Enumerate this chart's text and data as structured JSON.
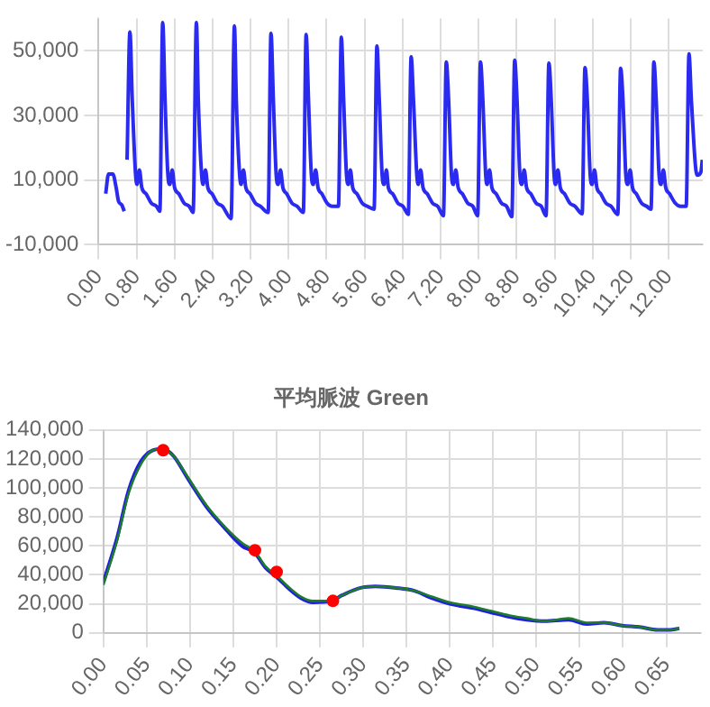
{
  "chart_data": [
    {
      "type": "line",
      "xlim": [
        0,
        12.72
      ],
      "ylim": [
        -10000,
        60000
      ],
      "xticks": [
        {
          "value": 0,
          "label": "0.00"
        },
        {
          "value": 0.8,
          "label": "0.80"
        },
        {
          "value": 1.6,
          "label": "1.60"
        },
        {
          "value": 2.4,
          "label": "2.40"
        },
        {
          "value": 3.2,
          "label": "3.20"
        },
        {
          "value": 4,
          "label": "4.00"
        },
        {
          "value": 4.8,
          "label": "4.80"
        },
        {
          "value": 5.6,
          "label": "5.60"
        },
        {
          "value": 6.4,
          "label": "6.40"
        },
        {
          "value": 7.2,
          "label": "7.20"
        },
        {
          "value": 8,
          "label": "8.00"
        },
        {
          "value": 8.8,
          "label": "8.80"
        },
        {
          "value": 9.6,
          "label": "9.60"
        },
        {
          "value": 10.4,
          "label": "10.40"
        },
        {
          "value": 11.2,
          "label": "11.20"
        },
        {
          "value": 12,
          "label": "12.00"
        }
      ],
      "yticks": [
        {
          "value": -10000,
          "label": "-10,000"
        },
        {
          "value": 10000,
          "label": "10,000"
        },
        {
          "value": 30000,
          "label": "30,000"
        },
        {
          "value": 50000,
          "label": "50,000"
        }
      ],
      "grid": true,
      "legend": false,
      "marker": "none",
      "line_style": "solid",
      "series": [
        {
          "color": "#2a2af0",
          "x": [
            0.15,
            0.21,
            0.3,
            0.37,
            0.42,
            0.49,
            0.54,
            0.57,
            0.6,
            0.66,
            0.71,
            0.78,
            0.81,
            0.86,
            0.91,
            1.0,
            1.11,
            1.22,
            1.29,
            1.35,
            1.4,
            1.46,
            1.5,
            1.55,
            1.6,
            1.69,
            1.8,
            1.91,
            1.99,
            2.06,
            2.1,
            2.17,
            2.2,
            2.25,
            2.3,
            2.39,
            2.5,
            2.61,
            2.79,
            2.86,
            2.9,
            2.97,
            3.0,
            3.05,
            3.1,
            3.19,
            3.3,
            3.41,
            3.57,
            3.63,
            3.68,
            3.74,
            3.78,
            3.83,
            3.88,
            3.96,
            4.07,
            4.18,
            4.31,
            4.37,
            4.42,
            4.48,
            4.52,
            4.57,
            4.62,
            4.7,
            4.81,
            4.92,
            5.05,
            5.11,
            5.16,
            5.22,
            5.26,
            5.3,
            5.35,
            5.44,
            5.55,
            5.66,
            5.8,
            5.86,
            5.91,
            5.97,
            6.01,
            6.06,
            6.1,
            6.19,
            6.3,
            6.41,
            6.52,
            6.58,
            6.63,
            6.7,
            6.73,
            6.78,
            6.83,
            6.92,
            7.03,
            7.14,
            7.26,
            7.32,
            7.37,
            7.43,
            7.47,
            7.52,
            7.57,
            7.66,
            7.77,
            7.88,
            7.98,
            8.04,
            8.09,
            8.15,
            8.18,
            8.23,
            8.28,
            8.37,
            8.48,
            8.59,
            8.7,
            8.76,
            8.81,
            8.87,
            8.91,
            8.96,
            9.01,
            9.1,
            9.21,
            9.32,
            9.42,
            9.48,
            9.53,
            9.59,
            9.62,
            9.67,
            9.72,
            9.81,
            9.92,
            10.03,
            10.18,
            10.24,
            10.29,
            10.35,
            10.39,
            10.44,
            10.49,
            10.57,
            10.68,
            10.79,
            10.93,
            10.99,
            11.04,
            11.1,
            11.14,
            11.19,
            11.24,
            11.32,
            11.43,
            11.54,
            11.63,
            11.69,
            11.74,
            11.8,
            11.84,
            11.89,
            11.94,
            12.02,
            12.14,
            12.25,
            12.37,
            12.43,
            12.48,
            12.6,
            12.68,
            12.71
          ],
          "values": [
            5800,
            11900,
            11900,
            7700,
            3500,
            2300,
            400,
            null,
            16300,
            55800,
            34600,
            11500,
            8700,
            13100,
            7700,
            5800,
            2900,
            1900,
            400,
            58700,
            34600,
            11500,
            8700,
            13100,
            7700,
            5800,
            2900,
            1900,
            0,
            58700,
            34600,
            11500,
            8700,
            13100,
            7700,
            5800,
            2900,
            1900,
            -1900,
            57700,
            34600,
            11500,
            8700,
            13100,
            7700,
            5800,
            2900,
            1900,
            0,
            55400,
            34600,
            11500,
            8700,
            13100,
            7700,
            5800,
            2900,
            1900,
            0,
            55000,
            34600,
            11500,
            8700,
            13100,
            7700,
            5800,
            2900,
            1900,
            1900,
            54200,
            34600,
            11500,
            8700,
            13100,
            7700,
            5800,
            2900,
            1900,
            1000,
            51500,
            34600,
            11500,
            8700,
            13100,
            7700,
            5800,
            2900,
            1900,
            -600,
            48100,
            34600,
            11500,
            8700,
            13100,
            7700,
            5800,
            2900,
            1900,
            -1000,
            46500,
            34600,
            11500,
            8700,
            13100,
            7700,
            5800,
            2900,
            1900,
            -1000,
            46500,
            34600,
            11500,
            8700,
            13100,
            7700,
            5800,
            2900,
            1900,
            -1300,
            47100,
            34600,
            11500,
            8700,
            13100,
            7700,
            5800,
            2900,
            1900,
            -1000,
            46200,
            34600,
            11500,
            8700,
            13100,
            7700,
            5800,
            2900,
            1900,
            -400,
            44800,
            34600,
            11500,
            8700,
            13100,
            7700,
            5800,
            2900,
            1900,
            -600,
            44600,
            34600,
            11500,
            8700,
            13100,
            7700,
            5800,
            2900,
            1900,
            1000,
            46500,
            34600,
            11500,
            8700,
            13100,
            7700,
            5800,
            2900,
            1900,
            1900,
            49000,
            34600,
            11500,
            12500,
            16300
          ]
        }
      ]
    },
    {
      "type": "line",
      "title": "平均脈波 Green",
      "xlim": [
        0,
        0.69
      ],
      "ylim": [
        0,
        140000
      ],
      "xticks": [
        {
          "value": 0,
          "label": "0.00"
        },
        {
          "value": 0.05,
          "label": "0.05"
        },
        {
          "value": 0.1,
          "label": "0.10"
        },
        {
          "value": 0.15,
          "label": "0.15"
        },
        {
          "value": 0.2,
          "label": "0.20"
        },
        {
          "value": 0.25,
          "label": "0.25"
        },
        {
          "value": 0.3,
          "label": "0.30"
        },
        {
          "value": 0.35,
          "label": "0.35"
        },
        {
          "value": 0.4,
          "label": "0.40"
        },
        {
          "value": 0.45,
          "label": "0.45"
        },
        {
          "value": 0.5,
          "label": "0.50"
        },
        {
          "value": 0.55,
          "label": "0.55"
        },
        {
          "value": 0.6,
          "label": "0.60"
        },
        {
          "value": 0.65,
          "label": "0.65"
        }
      ],
      "yticks": [
        {
          "value": 0,
          "label": "0"
        },
        {
          "value": 20000,
          "label": "20,000"
        },
        {
          "value": 40000,
          "label": "40,000"
        },
        {
          "value": 60000,
          "label": "60,000"
        },
        {
          "value": 80000,
          "label": "80,000"
        },
        {
          "value": 100000,
          "label": "100,000"
        },
        {
          "value": 120000,
          "label": "120,000"
        },
        {
          "value": 140000,
          "label": "140,000"
        }
      ],
      "grid": true,
      "legend": false,
      "line_style": "solid",
      "series": [
        {
          "color": "#1f1fe0",
          "x": [
            0,
            0.016,
            0.029,
            0.043,
            0.057,
            0.069,
            0.081,
            0.098,
            0.119,
            0.139,
            0.16,
            0.175,
            0.187,
            0.201,
            0.215,
            0.228,
            0.242,
            0.263,
            0.276,
            0.297,
            0.314,
            0.338,
            0.359,
            0.379,
            0.4,
            0.427,
            0.448,
            0.469,
            0.489,
            0.51,
            0.537,
            0.558,
            0.578,
            0.599,
            0.619,
            0.64,
            0.654,
            0.665
          ],
          "values": [
            35000,
            66000,
            98000,
            118000,
            126000,
            127000,
            122000,
            106000,
            87000,
            73000,
            60000,
            55000,
            45000,
            38000,
            30000,
            24000,
            21000,
            22000,
            26000,
            31000,
            32000,
            31000,
            29000,
            24000,
            20000,
            17000,
            14000,
            11000,
            9000,
            8000,
            9000,
            6000,
            7000,
            5000,
            4000,
            2000,
            2000,
            3000
          ]
        },
        {
          "color": "#1e7b2e",
          "x": [
            0,
            0.016,
            0.029,
            0.043,
            0.057,
            0.069,
            0.081,
            0.098,
            0.119,
            0.139,
            0.16,
            0.175,
            0.187,
            0.201,
            0.215,
            0.228,
            0.242,
            0.263,
            0.276,
            0.297,
            0.314,
            0.338,
            0.359,
            0.379,
            0.4,
            0.427,
            0.448,
            0.469,
            0.489,
            0.51,
            0.537,
            0.558,
            0.578,
            0.599,
            0.619,
            0.64,
            0.654,
            0.665
          ],
          "values": [
            33000,
            64000,
            96000,
            116000,
            126000,
            127000,
            122000,
            107000,
            88000,
            74000,
            62000,
            56000,
            46000,
            39000,
            31000,
            25000,
            22000,
            22000,
            26000,
            31000,
            32000,
            31000,
            29000,
            25000,
            21000,
            18000,
            15000,
            12000,
            10000,
            8000,
            10000,
            7000,
            7000,
            5000,
            4000,
            2000,
            2000,
            3000
          ]
        },
        {
          "type": "scatter",
          "color": "#ff0000",
          "x": [
            0.069,
            0.175,
            0.2,
            0.265
          ],
          "values": [
            126000,
            57000,
            42000,
            22000
          ]
        }
      ]
    }
  ]
}
